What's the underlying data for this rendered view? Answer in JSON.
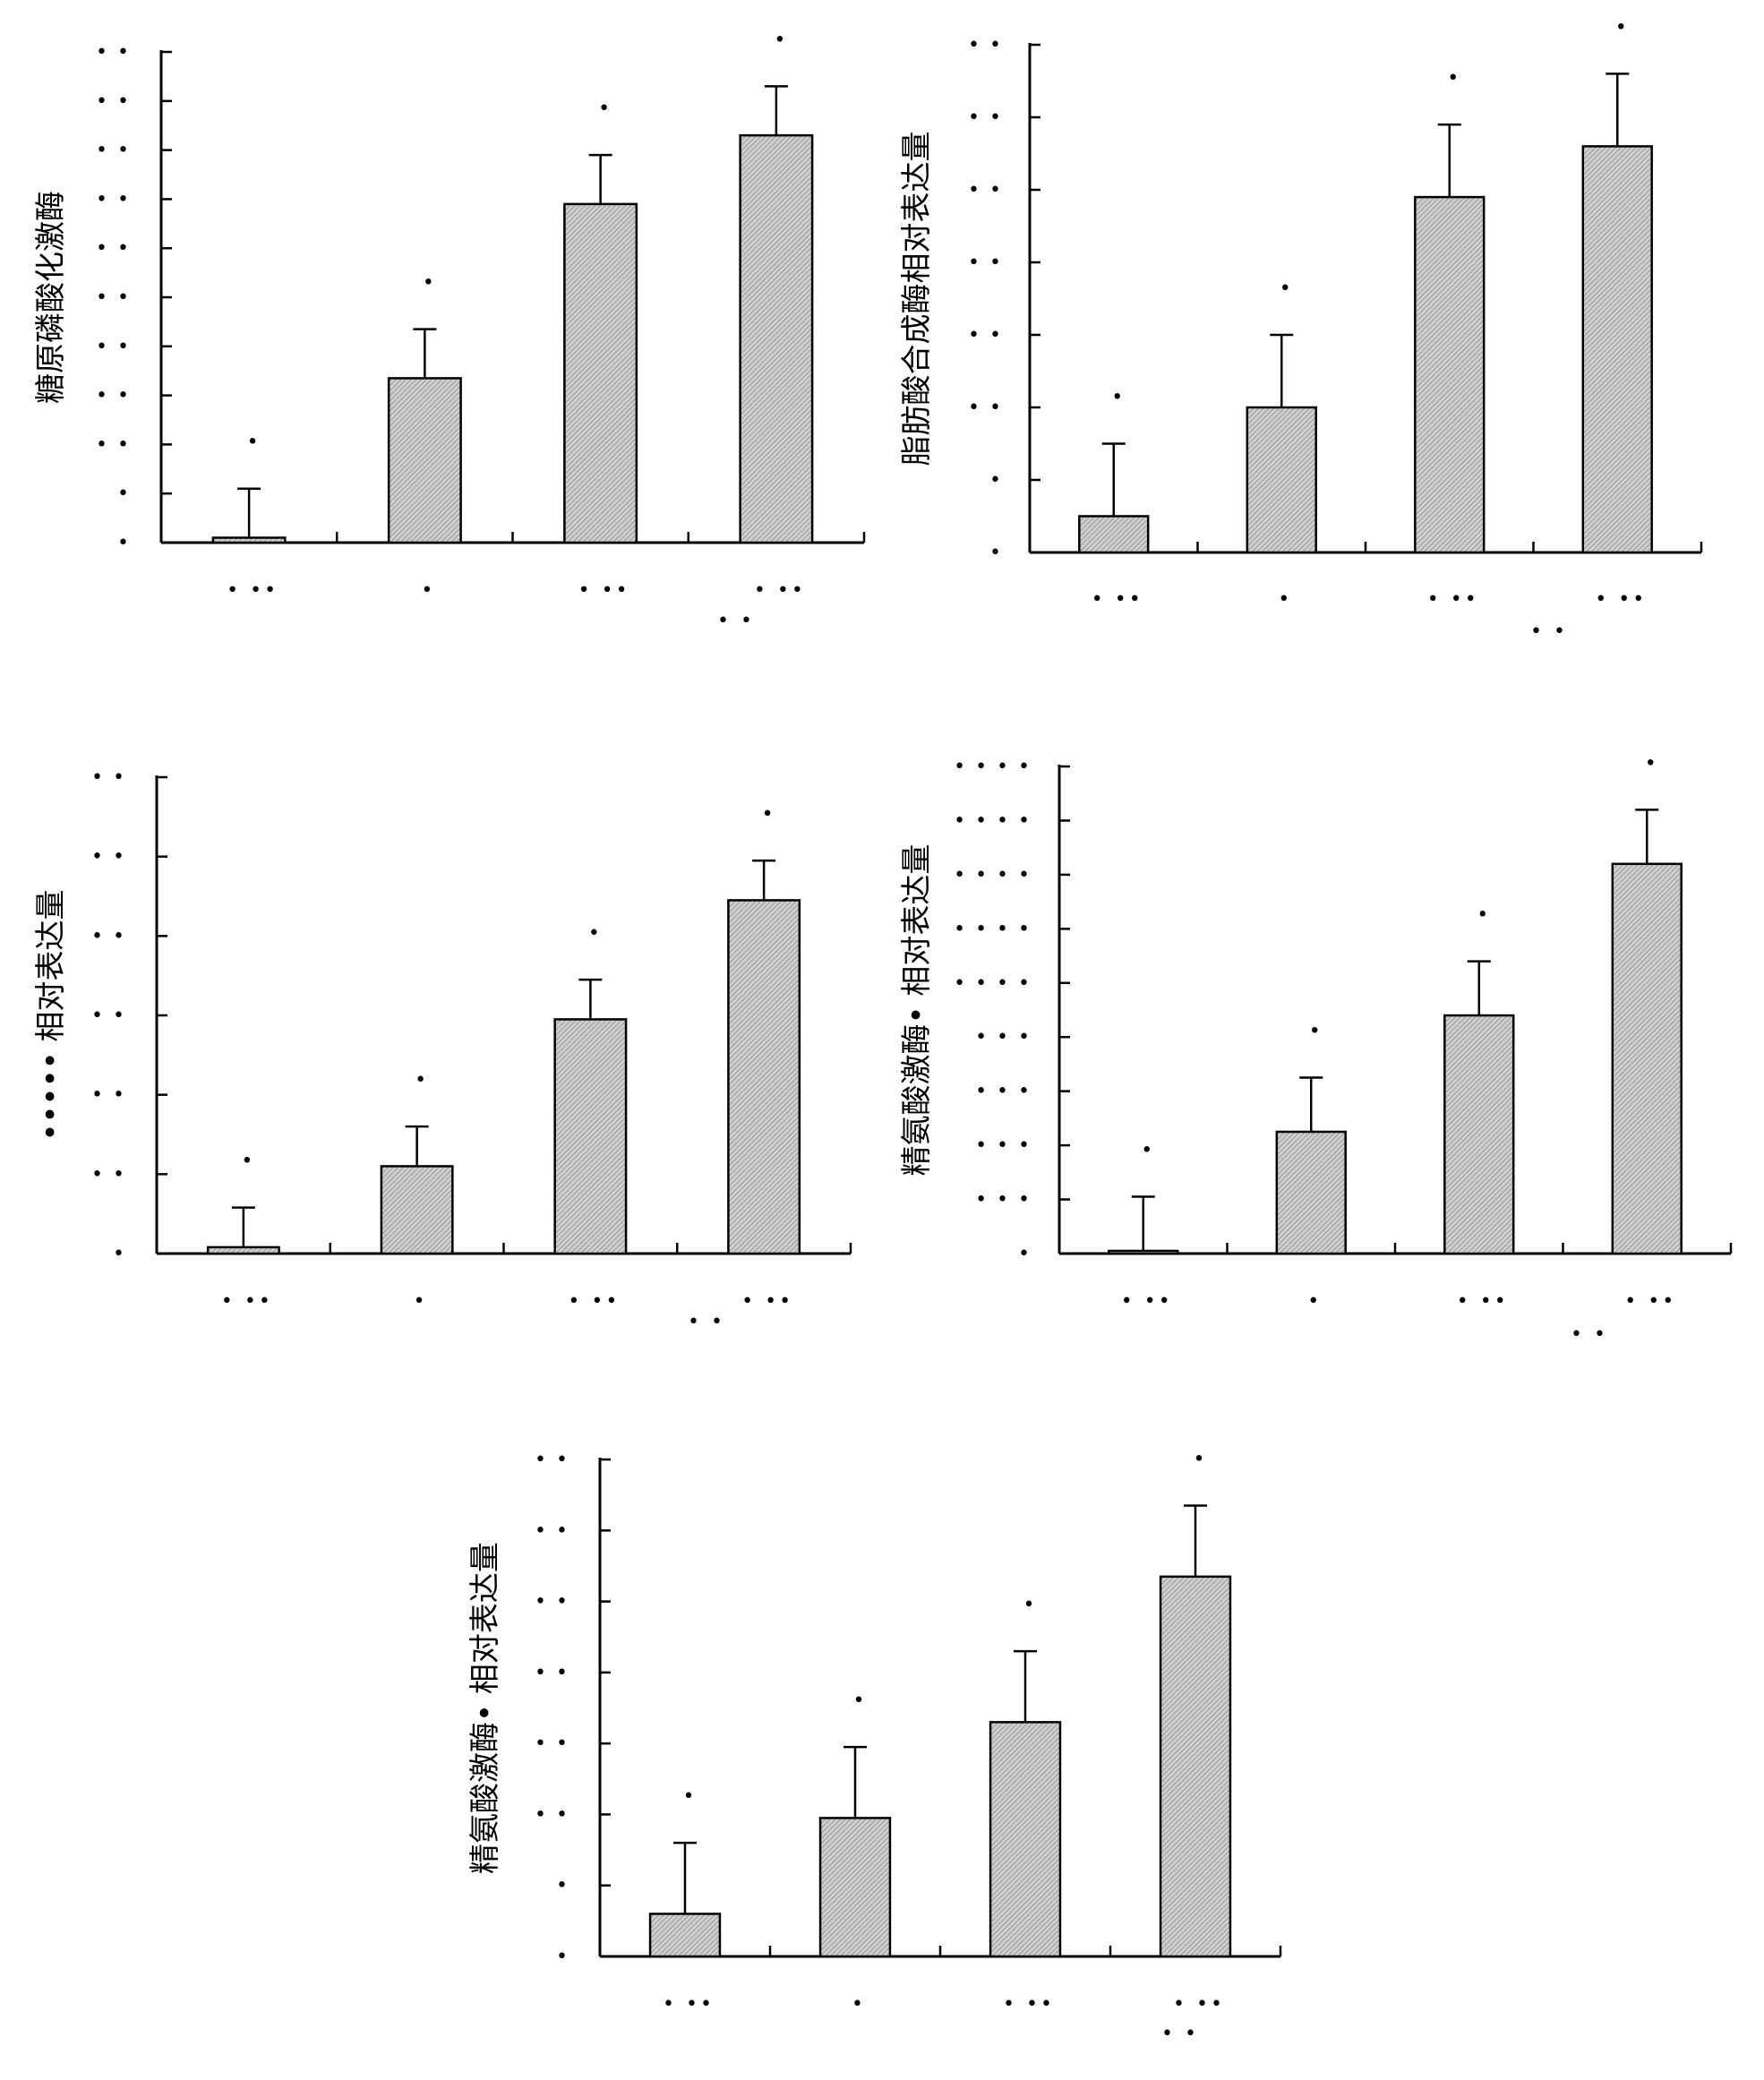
{
  "figure": {
    "legend_note": "• •"
  },
  "chart_data": [
    {
      "type": "bar",
      "ylabel": "糖原磷酸化激酶",
      "ylim": [
        0,
        10
      ],
      "yticks": [
        "•",
        "•",
        "• •",
        "• •",
        "• •",
        "• •",
        "• •",
        "• •",
        "• •",
        "• •",
        "• •"
      ],
      "categories": [
        "• ••",
        "•",
        "• ••",
        "• ••"
      ],
      "values": [
        0.1,
        3.35,
        6.9,
        8.3
      ],
      "errors": [
        1.0,
        1.0,
        1.0,
        1.0
      ],
      "significance": [
        "•",
        "•",
        "•",
        "•"
      ],
      "bar_fill": "#c8c8c8"
    },
    {
      "type": "bar",
      "ylabel": "脂肪酸合成酶相对表达量",
      "ylim": [
        0,
        7
      ],
      "yticks": [
        "•",
        "•",
        "• •",
        "• •",
        "• •",
        "• •",
        "• •",
        "• •"
      ],
      "categories": [
        "• ••",
        "•",
        "• ••",
        "• ••"
      ],
      "values": [
        0.5,
        2.0,
        4.9,
        5.6
      ],
      "errors": [
        1.0,
        1.0,
        1.0,
        1.0
      ],
      "significance": [
        "•",
        "•",
        "•",
        "•"
      ],
      "bar_fill": "#c8c8c8"
    },
    {
      "type": "bar",
      "ylabel": "••••• 相对表达量",
      "ylim": [
        0,
        6
      ],
      "yticks": [
        "•",
        "• •",
        "• •",
        "• •",
        "• •",
        "• •",
        "• •"
      ],
      "categories": [
        "• ••",
        "•",
        "• ••",
        "• ••"
      ],
      "values": [
        0.08,
        1.1,
        2.95,
        4.45
      ],
      "errors": [
        0.5,
        0.5,
        0.5,
        0.5
      ],
      "significance": [
        "•",
        "•",
        "•",
        "•"
      ],
      "bar_fill": "#c8c8c8"
    },
    {
      "type": "bar",
      "ylabel": "精氨酸激酶• 相对表达量",
      "ylim": [
        0,
        0.9
      ],
      "yticks": [
        "•",
        "• • •",
        "• • •",
        "• • •",
        "• • •",
        "• • • •",
        "• • • •",
        "• • • •",
        "• • • •",
        "• • • •"
      ],
      "categories": [
        "• ••",
        "•",
        "• ••",
        "• ••"
      ],
      "values": [
        0.005,
        0.225,
        0.44,
        0.72
      ],
      "errors": [
        0.1,
        0.1,
        0.1,
        0.1
      ],
      "significance": [
        "•",
        "•",
        "•",
        "•"
      ],
      "bar_fill": "#c8c8c8"
    },
    {
      "type": "bar",
      "ylabel": "精氨酸激酶• 相对表达量",
      "ylim": [
        0,
        7
      ],
      "yticks": [
        "•",
        "•",
        "• •",
        "• •",
        "• •",
        "• •",
        "• •",
        "• •"
      ],
      "categories": [
        "• ••",
        "•",
        "• ••",
        "• ••"
      ],
      "values": [
        0.6,
        1.95,
        3.3,
        5.35
      ],
      "errors": [
        1.0,
        1.0,
        1.0,
        1.0
      ],
      "significance": [
        "•",
        "•",
        "•",
        "•"
      ],
      "bar_fill": "#c8c8c8"
    }
  ]
}
